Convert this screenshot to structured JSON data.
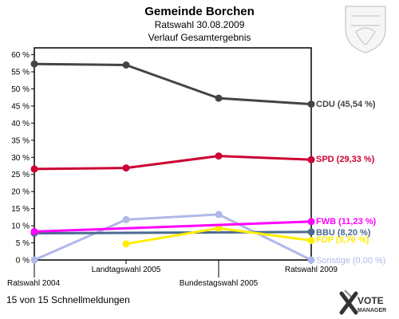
{
  "chart_data": {
    "type": "line",
    "title": "Gemeinde Borchen",
    "subtitle_1": "Ratswahl 30.08.2009",
    "subtitle_2": "Verlauf Gesamtergebnis",
    "categories": [
      "Ratswahl 2004",
      "Landtagswahl 2005",
      "Bundestagswahl 2005",
      "Ratswahl 2009"
    ],
    "y_ticks": [
      "0 %",
      "5 %",
      "10 %",
      "15 %",
      "20 %",
      "25 %",
      "30 %",
      "35 %",
      "40 %",
      "45 %",
      "50 %",
      "55 %",
      "60 %"
    ],
    "ylim": [
      0,
      62
    ],
    "grid": false,
    "series": [
      {
        "name": "CDU",
        "label": "CDU (45,54 %)",
        "color": "#444444",
        "values": [
          57.3,
          57.0,
          47.3,
          45.54
        ]
      },
      {
        "name": "SPD",
        "label": "SPD (29,33 %)",
        "color": "#cc0033",
        "values": [
          26.6,
          26.9,
          30.4,
          29.33
        ]
      },
      {
        "name": "FWB",
        "label": "FWB (11,23 %)",
        "color": "#ff00ff",
        "values": [
          8.3,
          null,
          null,
          11.23
        ]
      },
      {
        "name": "BBU",
        "label": "BBU (8,20 %)",
        "color": "#4a6a8f",
        "values": [
          7.8,
          null,
          null,
          8.2
        ]
      },
      {
        "name": "FDP",
        "label": "FDP (5,70 %)",
        "color": "#ffee00",
        "values": [
          null,
          4.7,
          9.3,
          5.7
        ]
      },
      {
        "name": "Sonstige",
        "label": "Sonstige (0,00 %)",
        "color": "#b0b8e8",
        "values": [
          0.0,
          11.8,
          13.3,
          0.0
        ]
      }
    ]
  },
  "footer": {
    "meldungen": "15 von 15 Schnellmeldungen",
    "brand_line1": "VOTE",
    "brand_line2": "MANAGER"
  }
}
